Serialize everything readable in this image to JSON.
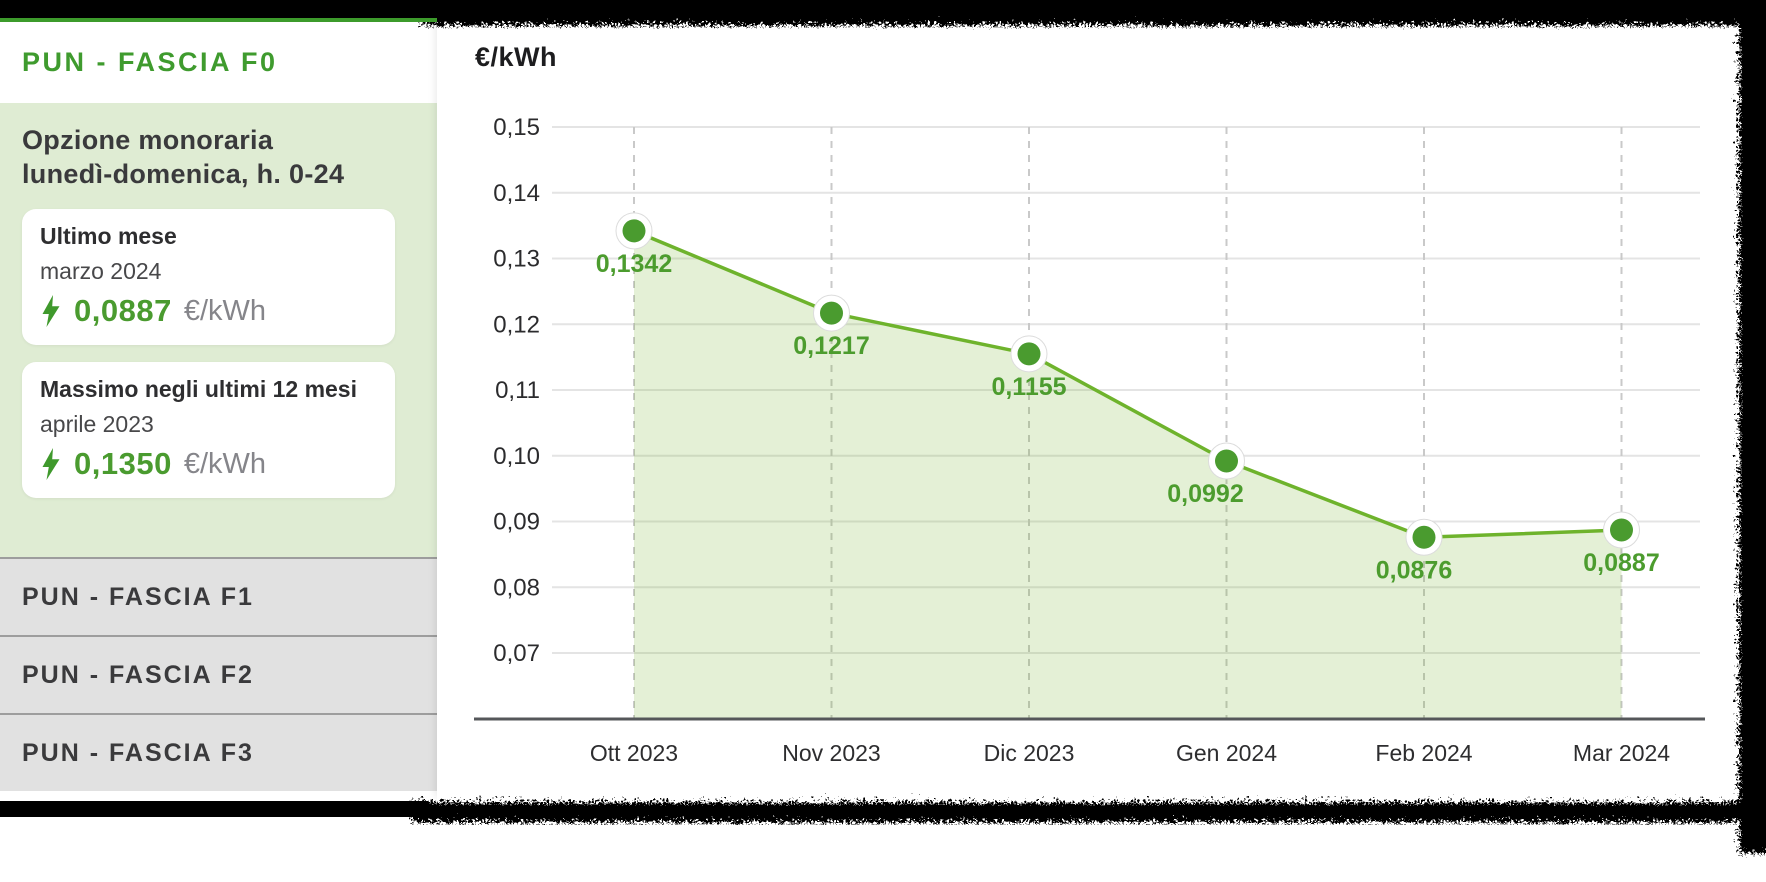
{
  "sidebar": {
    "active_tab": {
      "label": "PUN - FASCIA F0"
    },
    "panel": {
      "heading_line1": "Opzione monoraria",
      "heading_line2": "lunedì-domenica, h. 0-24",
      "cards": [
        {
          "title": "Ultimo mese",
          "period": "marzo 2024",
          "value": "0,0887",
          "unit": "€/kWh"
        },
        {
          "title": "Massimo negli ultimi 12 mesi",
          "period": "aprile 2023",
          "value": "0,1350",
          "unit": "€/kWh"
        }
      ]
    },
    "tabs": [
      {
        "label": "PUN - FASCIA F1"
      },
      {
        "label": "PUN - FASCIA F2"
      },
      {
        "label": "PUN - FASCIA F3"
      }
    ]
  },
  "chart": {
    "title": "€/kWh"
  },
  "chart_data": {
    "type": "area",
    "title": "€/kWh",
    "ylabel": "€/kWh",
    "xlabel": "",
    "categories": [
      "Ott 2023",
      "Nov 2023",
      "Dic 2023",
      "Gen 2024",
      "Feb 2024",
      "Mar 2024"
    ],
    "values": [
      0.1342,
      0.1217,
      0.1155,
      0.0992,
      0.0876,
      0.0887
    ],
    "point_labels": [
      "0,1342",
      "0,1217",
      "0,1155",
      "0,0992",
      "0,0876",
      "0,0887"
    ],
    "y_ticks": [
      0.15,
      0.14,
      0.13,
      0.12,
      0.11,
      0.1,
      0.09,
      0.08,
      0.07
    ],
    "y_tick_labels": [
      "0,15",
      "0,14",
      "0,13",
      "0,12",
      "0,11",
      "0,10",
      "0,09",
      "0,08",
      "0,07"
    ],
    "ylim": [
      0.06,
      0.157
    ],
    "grid": true,
    "legend": false,
    "colors": {
      "line": "#6eb32c",
      "point": "#4a9b2f",
      "point_ring": "#ffffff",
      "area": "rgba(122,182,50,0.20)",
      "value_label": "#4c9c2e",
      "axis": "#55575a",
      "grid_h": "#e4e4e4",
      "grid_v_dash": "#c9c9c9",
      "tick_text": "#2b2b2d",
      "month_text": "#2d2d2f"
    }
  },
  "colors": {
    "brand_green": "#3f9b2e",
    "accent_line": "#3c9b2b",
    "panel_bg": "#dfecd3",
    "tab_bg": "#e1e1e1",
    "tab_text": "#3a3a3c",
    "card_value_green": "#4a9b2f",
    "unit_gray": "#85858a",
    "frame_black": "#000000"
  }
}
